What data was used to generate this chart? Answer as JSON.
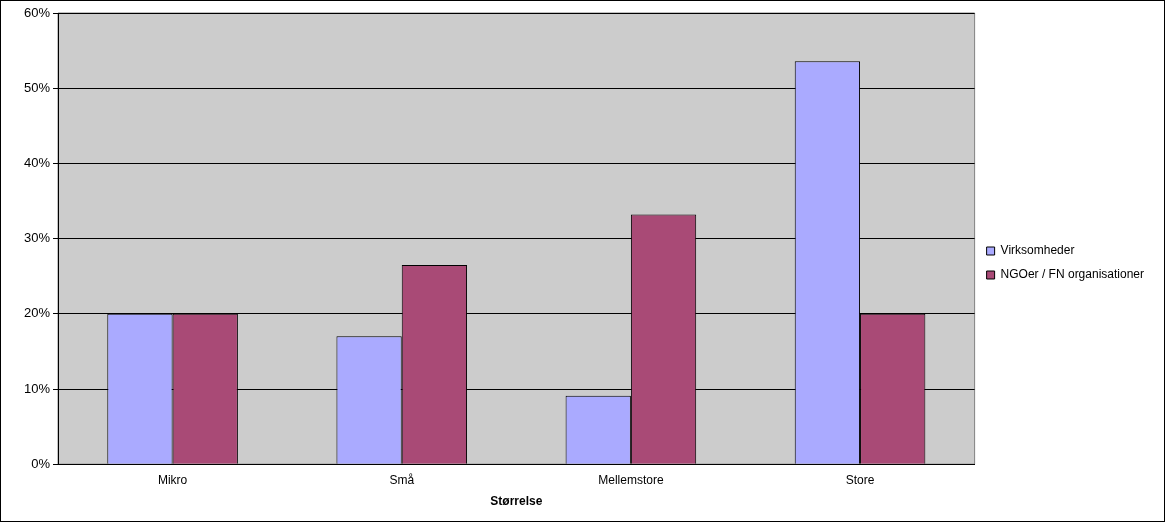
{
  "chart_data": {
    "type": "bar",
    "xlabel": "Størrelse",
    "categories": [
      "Mikro",
      "Små",
      "Mellemstore",
      "Store"
    ],
    "series": [
      {
        "name": "Virksomheder",
        "color": "#aaaaff",
        "values": [
          20,
          17,
          9.1,
          53.6
        ]
      },
      {
        "name": "NGOer / FN organisationer",
        "color": "#a94a76",
        "values": [
          20,
          26.5,
          33.2,
          20
        ]
      }
    ],
    "ylim": [
      0,
      60
    ],
    "yticks": [
      {
        "value": 0,
        "label": "0%"
      },
      {
        "value": 10,
        "label": "10%"
      },
      {
        "value": 20,
        "label": "20%"
      },
      {
        "value": 30,
        "label": "30%"
      },
      {
        "value": 40,
        "label": "40%"
      },
      {
        "value": 50,
        "label": "50%"
      },
      {
        "value": 60,
        "label": "60%"
      }
    ],
    "grid": "y",
    "legend": "right"
  }
}
